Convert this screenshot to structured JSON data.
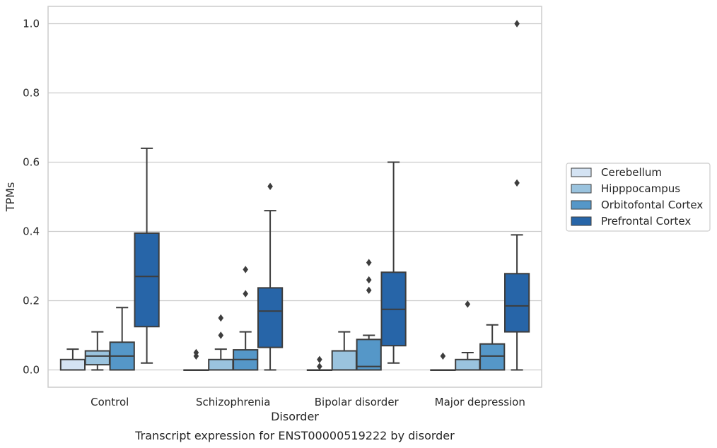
{
  "chart_data": {
    "type": "box",
    "xlabel": "Disorder",
    "ylabel": "TPMs",
    "caption": "Transcript expression for ENST00000519222 by disorder",
    "ylim": [
      -0.05,
      1.05
    ],
    "yticks": [
      0.0,
      0.2,
      0.4,
      0.6,
      0.8,
      1.0
    ],
    "ytick_labels": [
      "0.0",
      "0.2",
      "0.4",
      "0.6",
      "0.8",
      "1.0"
    ],
    "grid": "horizontal",
    "legend_position": "right",
    "categories": [
      "Control",
      "Schizophrenia",
      "Bipolar disorder",
      "Major depression"
    ],
    "series": [
      {
        "name": "Cerebellum",
        "color": "#d4e3f3",
        "boxes": [
          {
            "whislo": 0.0,
            "q1": 0.0,
            "med": 0.0,
            "q3": 0.03,
            "whishi": 0.06,
            "fliers": []
          },
          {
            "whislo": 0.0,
            "q1": 0.0,
            "med": 0.0,
            "q3": 0.0,
            "whishi": 0.0,
            "fliers": [
              0.04,
              0.05
            ]
          },
          {
            "whislo": 0.0,
            "q1": 0.0,
            "med": 0.0,
            "q3": 0.0,
            "whishi": 0.0,
            "fliers": [
              0.01,
              0.03
            ]
          },
          {
            "whislo": 0.0,
            "q1": 0.0,
            "med": 0.0,
            "q3": 0.0,
            "whishi": 0.0,
            "fliers": [
              0.04
            ]
          }
        ]
      },
      {
        "name": "Hipppocampus",
        "color": "#9ac3de",
        "boxes": [
          {
            "whislo": 0.0,
            "q1": 0.015,
            "med": 0.04,
            "q3": 0.055,
            "whishi": 0.11,
            "fliers": []
          },
          {
            "whislo": 0.0,
            "q1": 0.0,
            "med": 0.0,
            "q3": 0.03,
            "whishi": 0.06,
            "fliers": [
              0.1,
              0.15
            ]
          },
          {
            "whislo": 0.0,
            "q1": 0.0,
            "med": 0.0,
            "q3": 0.055,
            "whishi": 0.11,
            "fliers": []
          },
          {
            "whislo": 0.0,
            "q1": 0.0,
            "med": 0.0,
            "q3": 0.03,
            "whishi": 0.05,
            "fliers": [
              0.19
            ]
          }
        ]
      },
      {
        "name": "Orbitofontal Cortex",
        "color": "#5597c8",
        "boxes": [
          {
            "whislo": 0.0,
            "q1": 0.0,
            "med": 0.04,
            "q3": 0.08,
            "whishi": 0.18,
            "fliers": []
          },
          {
            "whislo": 0.0,
            "q1": 0.0,
            "med": 0.03,
            "q3": 0.058,
            "whishi": 0.11,
            "fliers": [
              0.22,
              0.29
            ]
          },
          {
            "whislo": 0.0,
            "q1": 0.0,
            "med": 0.01,
            "q3": 0.088,
            "whishi": 0.1,
            "fliers": [
              0.23,
              0.26,
              0.31
            ]
          },
          {
            "whislo": 0.0,
            "q1": 0.0,
            "med": 0.04,
            "q3": 0.075,
            "whishi": 0.13,
            "fliers": []
          }
        ]
      },
      {
        "name": "Prefrontal Cortex",
        "color": "#2765a8",
        "boxes": [
          {
            "whislo": 0.02,
            "q1": 0.125,
            "med": 0.27,
            "q3": 0.395,
            "whishi": 0.64,
            "fliers": []
          },
          {
            "whislo": 0.0,
            "q1": 0.065,
            "med": 0.17,
            "q3": 0.237,
            "whishi": 0.46,
            "fliers": [
              0.53
            ]
          },
          {
            "whislo": 0.02,
            "q1": 0.07,
            "med": 0.175,
            "q3": 0.282,
            "whishi": 0.6,
            "fliers": []
          },
          {
            "whislo": 0.0,
            "q1": 0.11,
            "med": 0.185,
            "q3": 0.278,
            "whishi": 0.39,
            "fliers": [
              0.54,
              1.0
            ]
          }
        ]
      }
    ]
  }
}
